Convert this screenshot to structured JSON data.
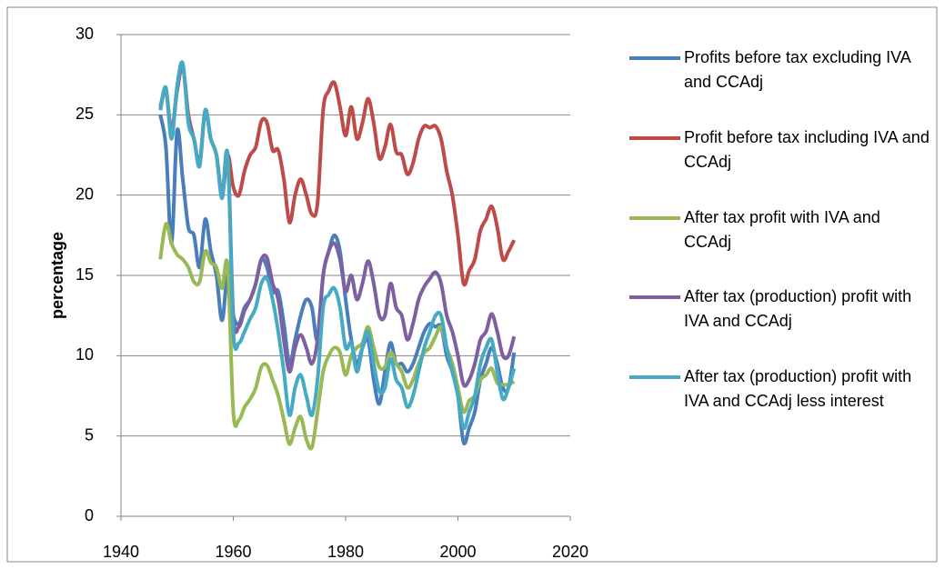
{
  "chart_data": {
    "type": "line",
    "y_label": "percentage",
    "xlim": [
      1940,
      2020
    ],
    "xticks": [
      1940,
      1960,
      1980,
      2000,
      2020
    ],
    "ylim": [
      0,
      30
    ],
    "yticks": [
      0,
      5,
      10,
      15,
      20,
      25,
      30
    ],
    "grid": true,
    "legend": "right",
    "x": [
      1947,
      1948,
      1949,
      1950,
      1951,
      1952,
      1953,
      1954,
      1955,
      1956,
      1957,
      1958,
      1959,
      1960,
      1961,
      1962,
      1963,
      1964,
      1965,
      1966,
      1967,
      1968,
      1969,
      1970,
      1971,
      1972,
      1973,
      1974,
      1975,
      1976,
      1977,
      1978,
      1979,
      1980,
      1981,
      1982,
      1983,
      1984,
      1985,
      1986,
      1987,
      1988,
      1989,
      1990,
      1991,
      1992,
      1993,
      1994,
      1995,
      1996,
      1997,
      1998,
      1999,
      2000,
      2001,
      2002,
      2003,
      2004,
      2005,
      2006,
      2007,
      2008,
      2009,
      2010
    ],
    "series": [
      {
        "name": "Profits before tax excluding IVA and CCAdj",
        "color": "#4a7ebb",
        "values": [
          25,
          23,
          17,
          24,
          21,
          18,
          17.5,
          15.5,
          18.5,
          16.5,
          15,
          12.2,
          15,
          12.5,
          12,
          13,
          13.5,
          14.5,
          16,
          15.5,
          14,
          14,
          12,
          9.5,
          11,
          12.5,
          13.5,
          13,
          11,
          15,
          16.5,
          17.5,
          16.5,
          13.5,
          11,
          9.5,
          10.5,
          11,
          8.5,
          7,
          9,
          10.8,
          9.5,
          9.5,
          9,
          9.5,
          10.5,
          11.5,
          12,
          11.8,
          11.8,
          10,
          9,
          7.5,
          4.6,
          5.5,
          6.5,
          8.5,
          9.5,
          10.5,
          9.5,
          8,
          8,
          10.2
        ]
      },
      {
        "name": "Profit before tax including IVA and CCAdj",
        "color": "#be4b48",
        "values": [
          25.5,
          26.5,
          24,
          26.5,
          28,
          25,
          23.5,
          22,
          25.2,
          23.5,
          22.5,
          20,
          22.5,
          20.5,
          20,
          21.5,
          22.5,
          23,
          24.6,
          24.5,
          22.8,
          22.8,
          21,
          18.3,
          20,
          21,
          20,
          18.8,
          19.5,
          25.3,
          26.5,
          27,
          25.5,
          23.7,
          25.5,
          23.5,
          24.5,
          26,
          24.5,
          22.3,
          23,
          24.4,
          22.7,
          22.5,
          21.3,
          22,
          23.5,
          24.3,
          24.2,
          24.3,
          23.5,
          21.5,
          20,
          17.5,
          14.5,
          15.3,
          16,
          17.8,
          18.5,
          19.3,
          18,
          16,
          16.5,
          17.2
        ]
      },
      {
        "name": "After tax profit with IVA and CCAdj",
        "color": "#98b954",
        "values": [
          16,
          18.2,
          17,
          16.3,
          16,
          15.5,
          14.6,
          14.6,
          16.5,
          15.8,
          15.5,
          14.2,
          15.6,
          6.5,
          6,
          6.8,
          7.3,
          8,
          9.3,
          9.4,
          8.5,
          7.5,
          6,
          4.5,
          5.5,
          6.2,
          4.8,
          4.3,
          6.5,
          9,
          10,
          10.5,
          10.2,
          8.8,
          10,
          10.5,
          10.8,
          11.8,
          10.5,
          9.3,
          9.3,
          10.2,
          9.5,
          9,
          8,
          8.5,
          9.5,
          10.2,
          10.5,
          11.2,
          11.8,
          10.5,
          9.5,
          8,
          6.5,
          7.2,
          7.5,
          8.5,
          8.8,
          9.2,
          8.3,
          8.2,
          8.2,
          8.4
        ]
      },
      {
        "name": "After tax (production) profit with IVA and CCAdj",
        "color": "#7d60a0",
        "values": [
          25.3,
          26.6,
          23.8,
          26.7,
          28.1,
          24.8,
          23.5,
          22,
          25.3,
          23.5,
          22.5,
          20,
          22.5,
          12.5,
          11.8,
          12.8,
          13.5,
          14.5,
          16,
          16.1,
          14.5,
          13.5,
          11,
          9,
          10.5,
          11.3,
          10.5,
          9.5,
          11,
          15,
          16.5,
          17,
          16,
          14,
          15,
          13.5,
          14.5,
          15.9,
          14.5,
          12.5,
          12.5,
          14.5,
          13,
          12.5,
          11,
          12,
          13.5,
          14.3,
          14.8,
          15.2,
          14.5,
          12.5,
          11.5,
          10,
          8.2,
          8.5,
          9.5,
          11,
          11.5,
          12.6,
          11.5,
          10,
          10,
          11.2
        ]
      },
      {
        "name": "After tax (production) profit with IVA and CCAdj less interest",
        "color": "#46aac5",
        "values": [
          25.3,
          26.7,
          23.5,
          26.8,
          28.2,
          24.5,
          23.5,
          21.8,
          25.3,
          23.5,
          22.5,
          19.8,
          22.5,
          11.5,
          10.8,
          11.5,
          12.3,
          13,
          14.5,
          14.8,
          13.5,
          11.5,
          9,
          6.3,
          8,
          8.8,
          7.5,
          6.3,
          8.5,
          13,
          13.8,
          14.2,
          13,
          10.5,
          10.8,
          9,
          10.5,
          11.5,
          9.5,
          7.8,
          8,
          9.8,
          8.5,
          8,
          6.8,
          7.5,
          9,
          10.5,
          11.5,
          12.5,
          12.5,
          10.5,
          9,
          7.5,
          5.5,
          6.5,
          7.5,
          9.5,
          10.5,
          11,
          9,
          7.3,
          8,
          9.2
        ]
      }
    ]
  }
}
